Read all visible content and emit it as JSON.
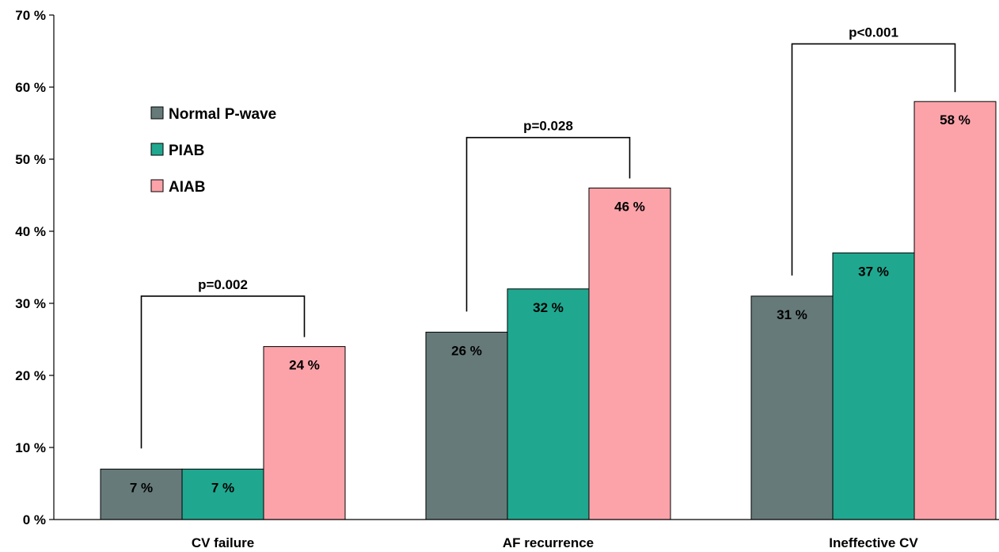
{
  "chart_data": {
    "type": "bar",
    "categories": [
      "CV failure",
      "AF recurrence",
      "Ineffective CV"
    ],
    "series": [
      {
        "name": "Normal P-wave",
        "values": [
          7,
          26,
          31
        ],
        "labels": [
          "7 %",
          "26 %",
          "31 %"
        ],
        "color": "#667a7a"
      },
      {
        "name": "PIAB",
        "values": [
          7,
          32,
          37
        ],
        "labels": [
          "7 %",
          "32 %",
          "37 %"
        ],
        "color": "#1fa88f"
      },
      {
        "name": "AIAB",
        "values": [
          24,
          46,
          58
        ],
        "labels": [
          "24 %",
          "46 %",
          "58 %"
        ],
        "color": "#fca3aa"
      }
    ],
    "ylim": [
      0,
      70
    ],
    "yticks": [
      0,
      10,
      20,
      30,
      40,
      50,
      60,
      70
    ],
    "ytick_labels": [
      "0 %",
      "10 %",
      "20 %",
      "30 %",
      "40 %",
      "50 %",
      "60 %",
      "70 %"
    ],
    "significance": [
      {
        "category": "CV failure",
        "label": "p=0.002",
        "from": "Normal P-wave",
        "to": "AIAB",
        "level": 31
      },
      {
        "category": "AF recurrence",
        "label": "p=0.028",
        "from": "Normal P-wave",
        "to": "AIAB",
        "level": 53
      },
      {
        "category": "Ineffective CV",
        "label": "p<0.001",
        "from": "Normal P-wave",
        "to": "AIAB",
        "level": 66
      }
    ],
    "legend_position": "top-left",
    "grid": false,
    "xlabel": "",
    "ylabel": "",
    "title": ""
  }
}
